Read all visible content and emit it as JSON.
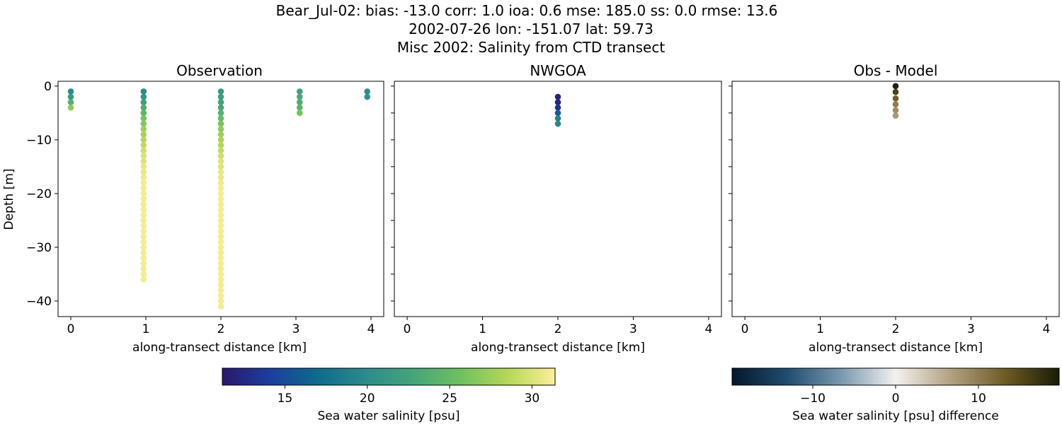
{
  "title_lines": [
    "Bear_Jul-02: bias: -13.0  corr: 1.0  ioa: 0.6  mse: 185.0  ss: 0.0  rmse: 13.6",
    "2002-07-26 lon: -151.07 lat: 59.73",
    "Misc 2002: Salinity from CTD transect"
  ],
  "chart_data": [
    {
      "type": "scatter",
      "title": "Observation",
      "xlabel": "along-transect distance [km]",
      "ylabel": "Depth [m]",
      "xlim": [
        -0.17,
        4.17
      ],
      "ylim": [
        -42.9,
        0.9
      ],
      "xticks": [
        0,
        1,
        2,
        3,
        4
      ],
      "yticks": [
        0,
        -10,
        -20,
        -30,
        -40
      ],
      "colormap": "haline",
      "profiles": [
        {
          "x": 0,
          "salinity": [
            20,
            21.5,
            24,
            27
          ]
        },
        {
          "x": 0.97,
          "salinity": [
            20,
            21,
            22,
            23.5,
            24.5,
            26,
            26.5,
            27.5,
            28,
            28.5,
            29,
            29.5,
            30,
            30,
            30.5,
            30.5,
            30.8,
            31,
            31,
            31,
            31,
            31,
            31,
            31,
            31,
            31,
            31,
            31,
            31,
            31,
            31,
            31,
            31,
            31,
            31,
            31
          ]
        },
        {
          "x": 2.0,
          "salinity": [
            21.5,
            22,
            22.5,
            23,
            24,
            25,
            26,
            27,
            27.5,
            28,
            28.5,
            29,
            29.5,
            30,
            30,
            30.5,
            30.5,
            30.8,
            31,
            31,
            31,
            31,
            31,
            31,
            31,
            31,
            31,
            31,
            31,
            31,
            31,
            31,
            31,
            31,
            31,
            31,
            31,
            31,
            31,
            31,
            31
          ]
        },
        {
          "x": 3.05,
          "salinity": [
            22.5,
            23,
            23.5,
            24.5,
            26
          ]
        },
        {
          "x": 3.95,
          "salinity": [
            20,
            20.5
          ]
        }
      ]
    },
    {
      "type": "scatter",
      "title": "NWGOA",
      "xlabel": "along-transect distance [km]",
      "xlim": [
        -0.17,
        4.17
      ],
      "ylim": [
        -42.9,
        0.9
      ],
      "xticks": [
        0,
        1,
        2,
        3,
        4
      ],
      "colormap": "haline",
      "points": [
        {
          "x": 2.0,
          "depth": -2,
          "salinity": 12
        },
        {
          "x": 2.0,
          "depth": -3,
          "salinity": 12.3
        },
        {
          "x": 2.0,
          "depth": -4,
          "salinity": 13
        },
        {
          "x": 2.0,
          "depth": -5,
          "salinity": 16
        },
        {
          "x": 2.0,
          "depth": -6,
          "salinity": 19
        },
        {
          "x": 2.0,
          "depth": -7,
          "salinity": 19.5
        }
      ]
    },
    {
      "type": "scatter",
      "title": "Obs - Model",
      "xlabel": "along-transect distance [km]",
      "xlim": [
        -0.17,
        4.17
      ],
      "ylim": [
        -42.9,
        0.9
      ],
      "xticks": [
        0,
        1,
        2,
        3,
        4
      ],
      "colormap": "diff",
      "points": [
        {
          "x": 2.0,
          "depth": 0,
          "difference": 19
        },
        {
          "x": 2.0,
          "depth": -1.1,
          "difference": 16
        },
        {
          "x": 2.0,
          "depth": -2.3,
          "difference": 13
        },
        {
          "x": 2.0,
          "depth": -3.4,
          "difference": 10
        },
        {
          "x": 2.0,
          "depth": -4.5,
          "difference": 8.5
        },
        {
          "x": 2.0,
          "depth": -5.5,
          "difference": 7.5
        }
      ]
    }
  ],
  "colorbars": [
    {
      "label": "Sea water salinity [psu]",
      "range": [
        11.2,
        31.4
      ],
      "ticks": [
        15,
        20,
        25,
        30
      ],
      "colors": [
        "#2a186c",
        "#1c3e9c",
        "#0f6a8d",
        "#2d8a8a",
        "#45a47a",
        "#6ec05f",
        "#b6d65a",
        "#fdef9a"
      ]
    },
    {
      "label": "Sea water salinity [psu] difference",
      "range": [
        -19.75,
        19.75
      ],
      "ticks": [
        -10,
        0,
        10
      ],
      "colors": [
        "#04172c",
        "#1f4c6f",
        "#7a98ae",
        "#f4f1ee",
        "#b3a282",
        "#6e5c25",
        "#181c07"
      ]
    }
  ]
}
